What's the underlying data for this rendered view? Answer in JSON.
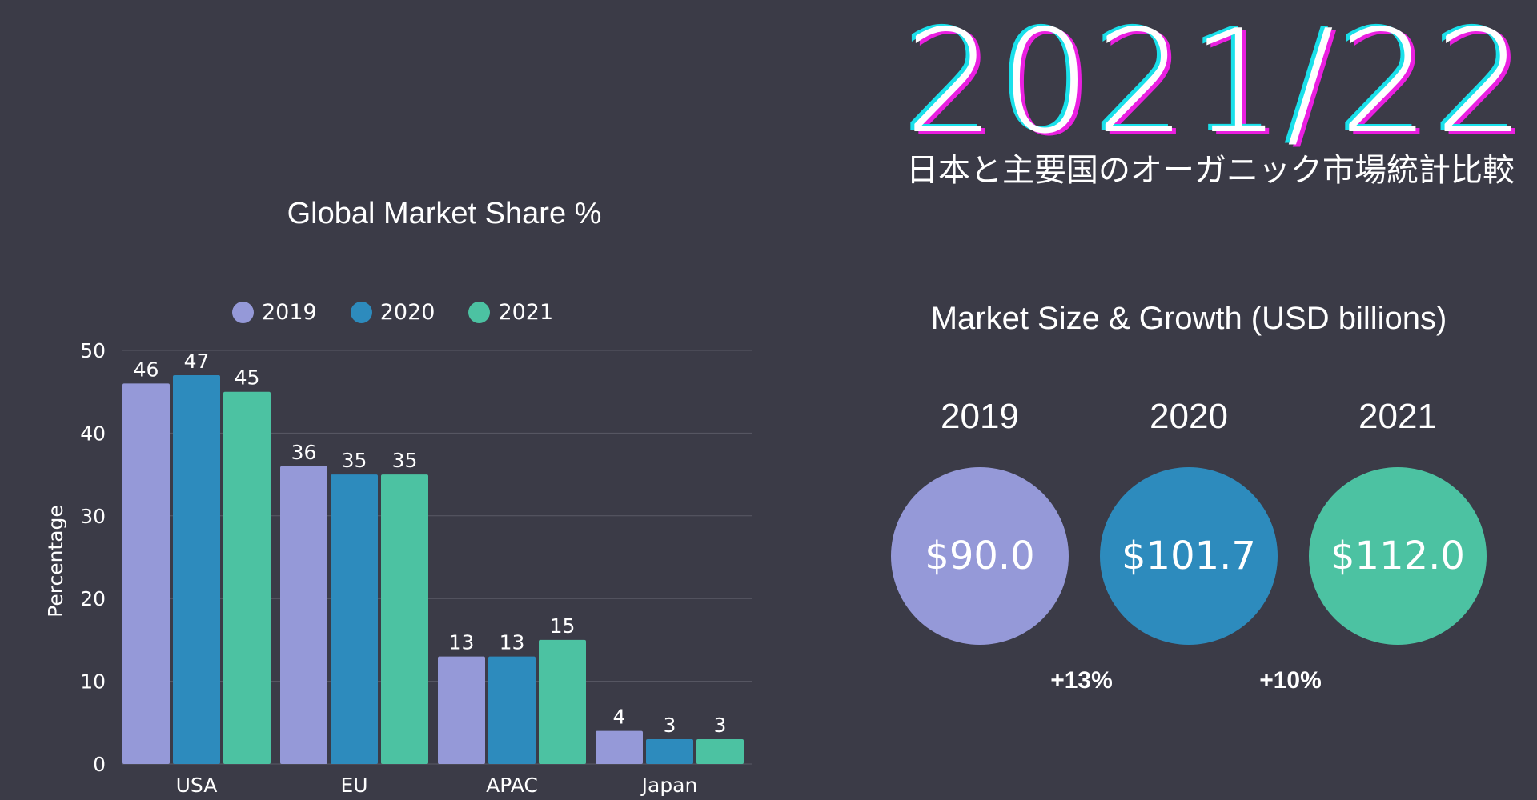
{
  "header": {
    "big_title": "2021/22",
    "subtitle": "日本と主要国のオーガニック市場統計比較"
  },
  "colors": {
    "background": "#3b3b47",
    "series_2019": "#9599d8",
    "series_2020": "#2d8bbd",
    "series_2021": "#4cc2a2",
    "gridline": "#5a5a66"
  },
  "chart_data": [
    {
      "type": "bar",
      "title": "Global Market Share %",
      "xlabel": "",
      "ylabel": "Percentage",
      "categories": [
        "USA",
        "EU",
        "APAC",
        "Japan"
      ],
      "series": [
        {
          "name": "2019",
          "values": [
            46,
            36,
            13,
            4
          ]
        },
        {
          "name": "2020",
          "values": [
            47,
            35,
            13,
            3
          ]
        },
        {
          "name": "2021",
          "values": [
            45,
            35,
            15,
            3
          ]
        }
      ],
      "ylim": [
        0,
        50
      ],
      "yticks": [
        0,
        10,
        20,
        30,
        40,
        50
      ],
      "grid": true,
      "legend": "top-center",
      "data_labels": true
    },
    {
      "type": "bubble",
      "title": "Market Size & Growth (USD billions)",
      "categories": [
        "2019",
        "2020",
        "2021"
      ],
      "values": [
        90.0,
        101.7,
        112.0
      ],
      "value_labels": [
        "$90.0",
        "$101.7",
        "$112.0"
      ],
      "growth_labels": [
        "+13%",
        "+10%"
      ]
    }
  ]
}
